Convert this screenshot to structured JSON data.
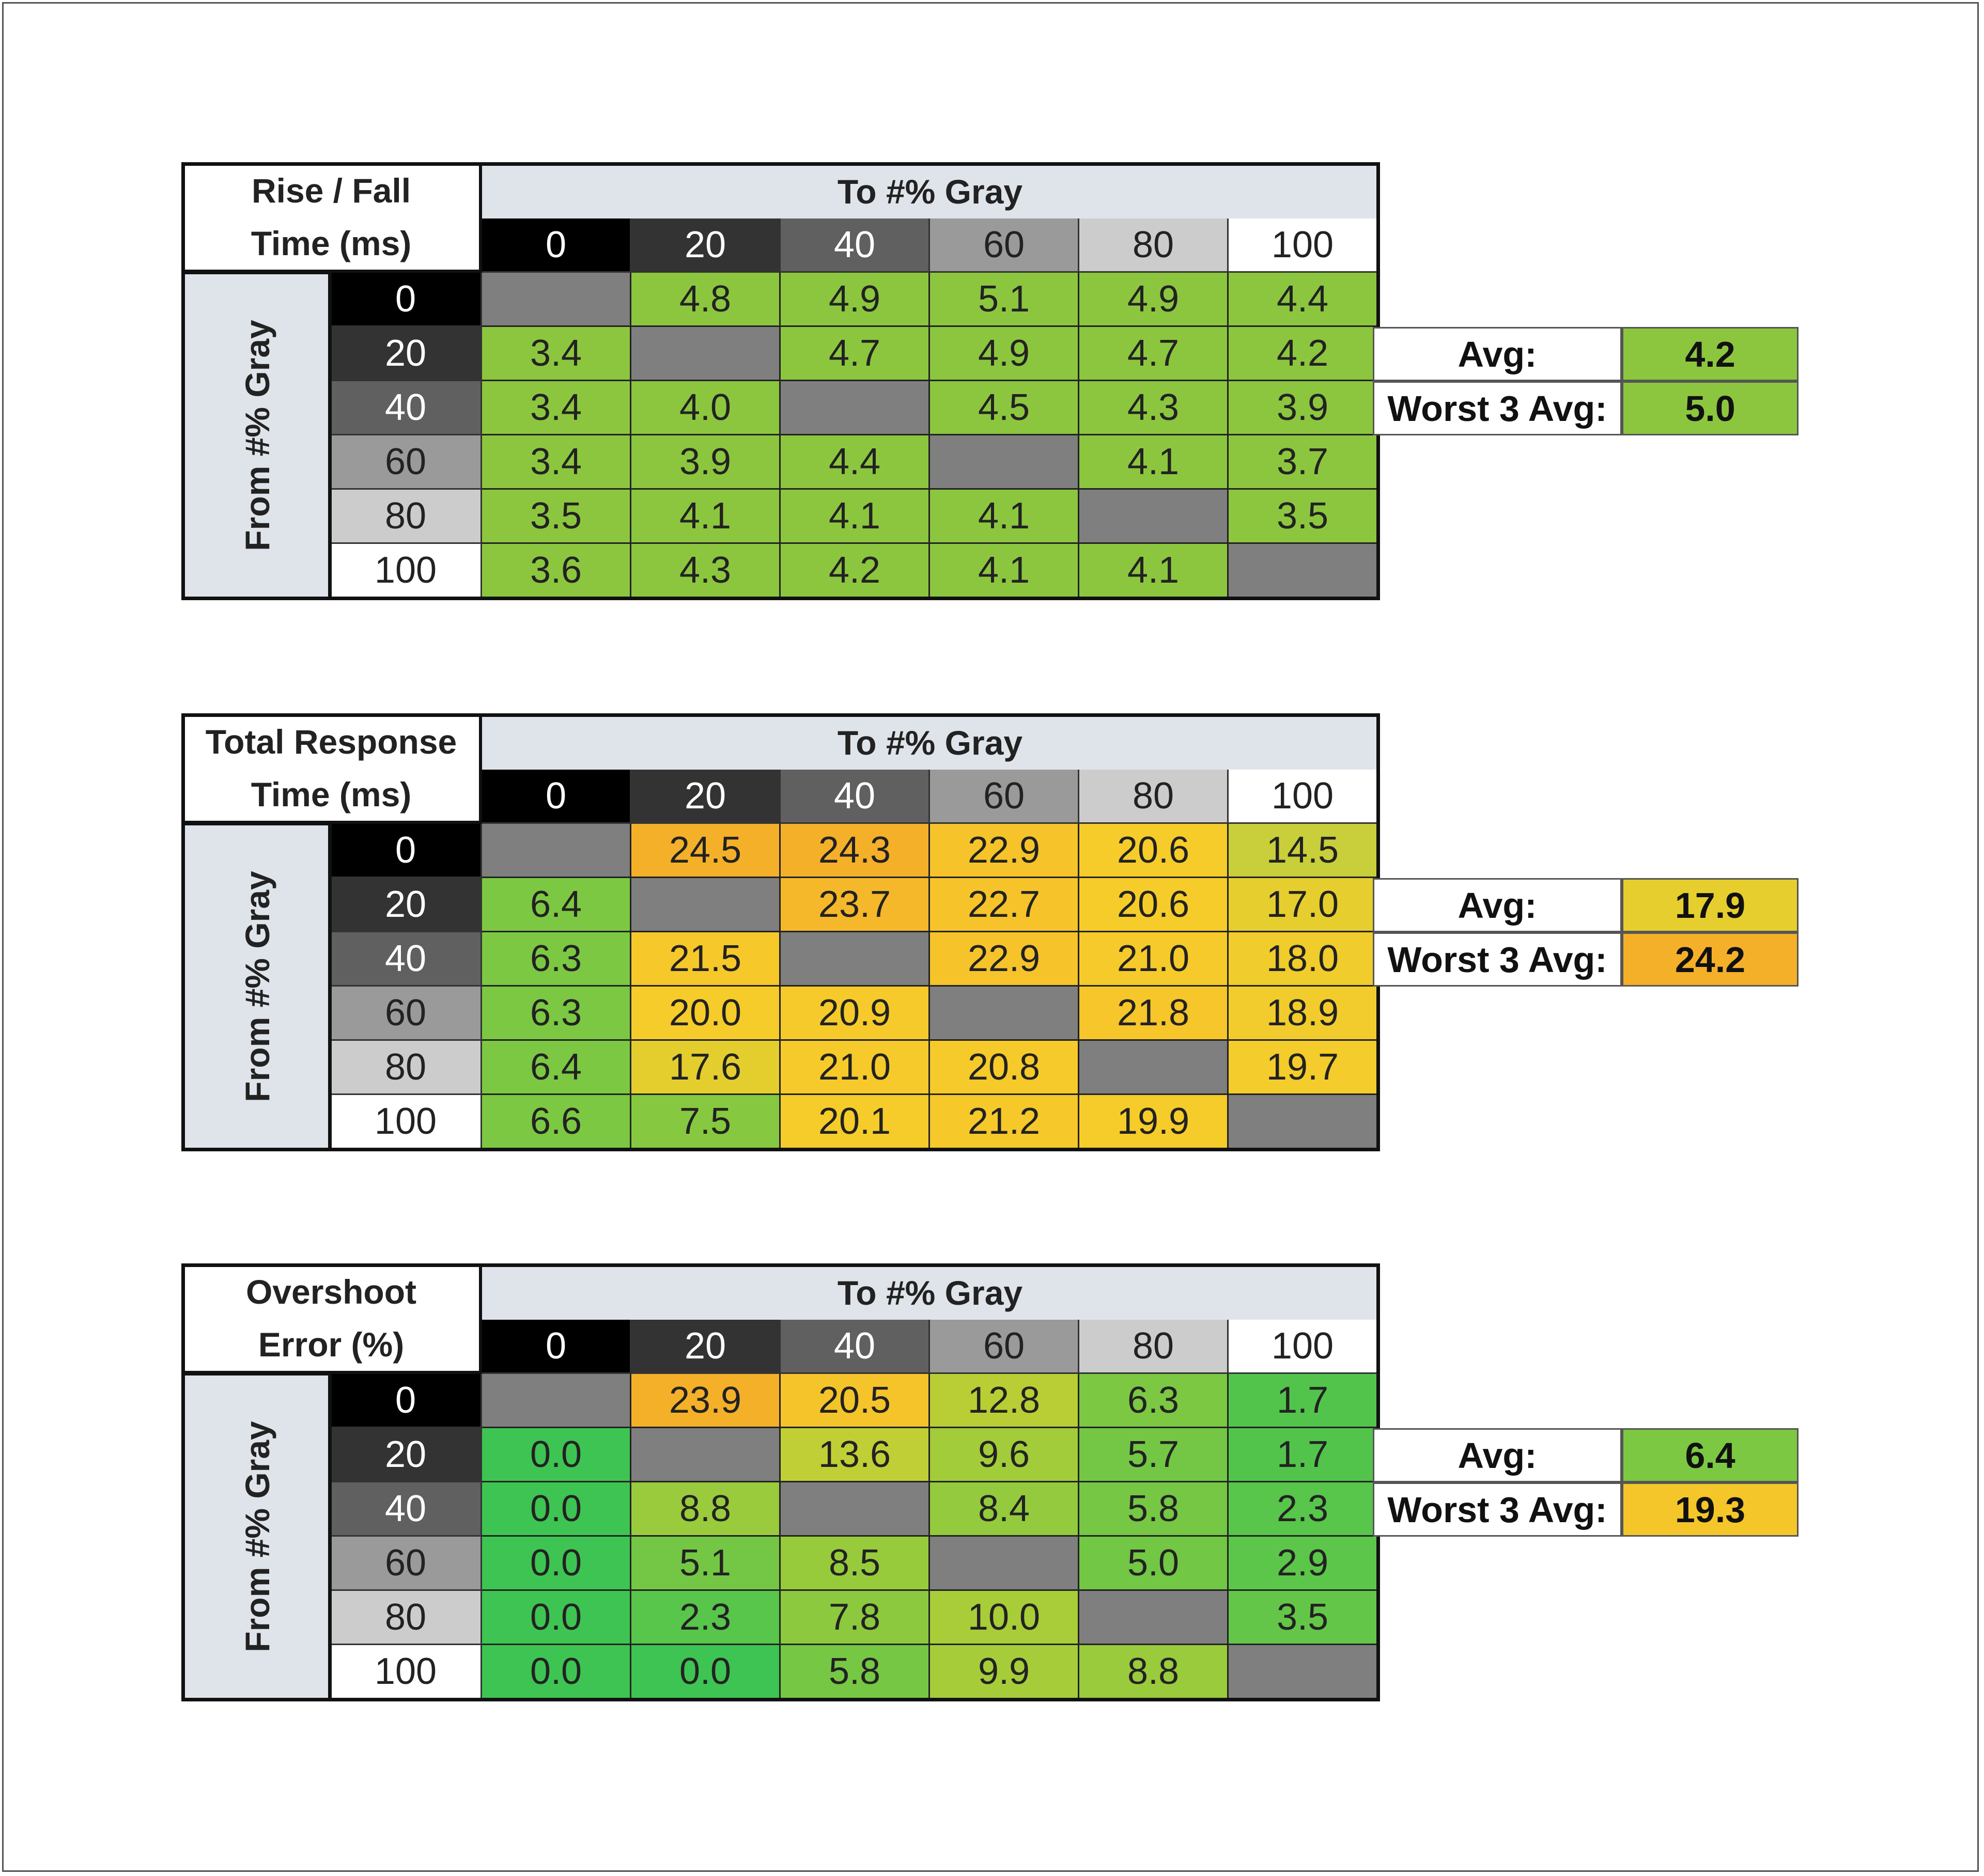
{
  "chart_data": [
    {
      "type": "heatmap",
      "title_lines": [
        "Rise / Fall",
        "Time (ms)"
      ],
      "col_header": "To #% Gray",
      "row_header": "From #% Gray",
      "columns": [
        "0",
        "20",
        "40",
        "60",
        "80",
        "100"
      ],
      "rows": [
        "0",
        "20",
        "40",
        "60",
        "80",
        "100"
      ],
      "values": [
        [
          null,
          "4.8",
          "4.9",
          "5.1",
          "4.9",
          "4.4"
        ],
        [
          "3.4",
          null,
          "4.7",
          "4.9",
          "4.7",
          "4.2"
        ],
        [
          "3.4",
          "4.0",
          null,
          "4.5",
          "4.3",
          "3.9"
        ],
        [
          "3.4",
          "3.9",
          "4.4",
          null,
          "4.1",
          "3.7"
        ],
        [
          "3.5",
          "4.1",
          "4.1",
          "4.1",
          null,
          "3.5"
        ],
        [
          "3.6",
          "4.3",
          "4.2",
          "4.1",
          "4.1",
          null
        ]
      ],
      "colors": [
        [
          null,
          "#8cc63f",
          "#8cc63f",
          "#8cc63f",
          "#8cc63f",
          "#8cc63f"
        ],
        [
          "#8cc63f",
          null,
          "#8cc63f",
          "#8cc63f",
          "#8cc63f",
          "#8cc63f"
        ],
        [
          "#8cc63f",
          "#8cc63f",
          null,
          "#8cc63f",
          "#8cc63f",
          "#8cc63f"
        ],
        [
          "#8cc63f",
          "#8cc63f",
          "#8cc63f",
          null,
          "#8cc63f",
          "#8cc63f"
        ],
        [
          "#8cc63f",
          "#8cc63f",
          "#8cc63f",
          "#8cc63f",
          null,
          "#8cc63f"
        ],
        [
          "#8cc63f",
          "#8cc63f",
          "#8cc63f",
          "#8cc63f",
          "#8cc63f",
          null
        ]
      ],
      "summary": [
        {
          "label": "Avg:",
          "value": "4.2",
          "color": "#8cc63f"
        },
        {
          "label": "Worst 3 Avg:",
          "value": "5.0",
          "color": "#8cc63f"
        }
      ]
    },
    {
      "type": "heatmap",
      "title_lines": [
        "Total Response",
        "Time (ms)"
      ],
      "col_header": "To #% Gray",
      "row_header": "From #% Gray",
      "columns": [
        "0",
        "20",
        "40",
        "60",
        "80",
        "100"
      ],
      "rows": [
        "0",
        "20",
        "40",
        "60",
        "80",
        "100"
      ],
      "values": [
        [
          null,
          "24.5",
          "24.3",
          "22.9",
          "20.6",
          "14.5"
        ],
        [
          "6.4",
          null,
          "23.7",
          "22.7",
          "20.6",
          "17.0"
        ],
        [
          "6.3",
          "21.5",
          null,
          "22.9",
          "21.0",
          "18.0"
        ],
        [
          "6.3",
          "20.0",
          "20.9",
          null,
          "21.8",
          "18.9"
        ],
        [
          "6.4",
          "17.6",
          "21.0",
          "20.8",
          null,
          "19.7"
        ],
        [
          "6.6",
          "7.5",
          "20.1",
          "21.2",
          "19.9",
          null
        ]
      ],
      "colors": [
        [
          null,
          "#f5b02a",
          "#f5b02a",
          "#f6c42a",
          "#f6cc2a",
          "#c8cf3a"
        ],
        [
          "#7cc843",
          null,
          "#f5b82a",
          "#f6c42a",
          "#f6cc2a",
          "#e6ce2e"
        ],
        [
          "#7cc843",
          "#f6c82a",
          null,
          "#f6c42a",
          "#f6ca2a",
          "#f0cc2c"
        ],
        [
          "#7cc843",
          "#f6cc2a",
          "#f6ca2a",
          null,
          "#f6c62a",
          "#f2cc2c"
        ],
        [
          "#7cc843",
          "#e4ce2e",
          "#f6ca2a",
          "#f6ca2a",
          null,
          "#f4cc2b"
        ],
        [
          "#7cc843",
          "#86c940",
          "#f6cc2a",
          "#f6c82a",
          "#f6cc2a",
          null
        ]
      ],
      "summary": [
        {
          "label": "Avg:",
          "value": "17.9",
          "color": "#e6ce2e"
        },
        {
          "label": "Worst 3 Avg:",
          "value": "24.2",
          "color": "#f5b02a"
        }
      ]
    },
    {
      "type": "heatmap",
      "title_lines": [
        "Overshoot",
        "Error (%)"
      ],
      "col_header": "To #% Gray",
      "row_header": "From #% Gray",
      "columns": [
        "0",
        "20",
        "40",
        "60",
        "80",
        "100"
      ],
      "rows": [
        "0",
        "20",
        "40",
        "60",
        "80",
        "100"
      ],
      "values": [
        [
          null,
          "23.9",
          "20.5",
          "12.8",
          "6.3",
          "1.7"
        ],
        [
          "0.0",
          null,
          "13.6",
          "9.6",
          "5.7",
          "1.7"
        ],
        [
          "0.0",
          "8.8",
          null,
          "8.4",
          "5.8",
          "2.3"
        ],
        [
          "0.0",
          "5.1",
          "8.5",
          null,
          "5.0",
          "2.9"
        ],
        [
          "0.0",
          "2.3",
          "7.8",
          "10.0",
          null,
          "3.5"
        ],
        [
          "0.0",
          "0.0",
          "5.8",
          "9.9",
          "8.8",
          null
        ]
      ],
      "colors": [
        [
          null,
          "#f5b02a",
          "#f5c42a",
          "#b8ce34",
          "#7cc843",
          "#52c44c"
        ],
        [
          "#3ec452",
          null,
          "#c0cf36",
          "#a2cc3a",
          "#74c745",
          "#52c44c"
        ],
        [
          "#3ec452",
          "#9acb3c",
          null,
          "#94ca3d",
          "#76c744",
          "#58c54b"
        ],
        [
          "#3ec452",
          "#74c745",
          "#98cb3c",
          null,
          "#72c745",
          "#5cc64a"
        ],
        [
          "#3ec452",
          "#58c54b",
          "#8cc93e",
          "#a8cd39",
          null,
          "#64c648"
        ],
        [
          "#3ec452",
          "#3ec452",
          "#76c744",
          "#a6cd39",
          "#9acb3c",
          null
        ]
      ],
      "summary": [
        {
          "label": "Avg:",
          "value": "6.4",
          "color": "#7cc843"
        },
        {
          "label": "Worst 3 Avg:",
          "value": "19.3",
          "color": "#f5c62a"
        }
      ]
    }
  ],
  "style": {
    "header_colors": [
      "#000000",
      "#333333",
      "#606060",
      "#9a9a9a",
      "#cccccc",
      "#ffffff"
    ],
    "header_text_colors": [
      "#ffffff",
      "#ffffff",
      "#ffffff",
      "#222222",
      "#222222",
      "#222222"
    ],
    "diagonal_color": "#7f7f7f",
    "header_bg": "#dfe4ea"
  }
}
